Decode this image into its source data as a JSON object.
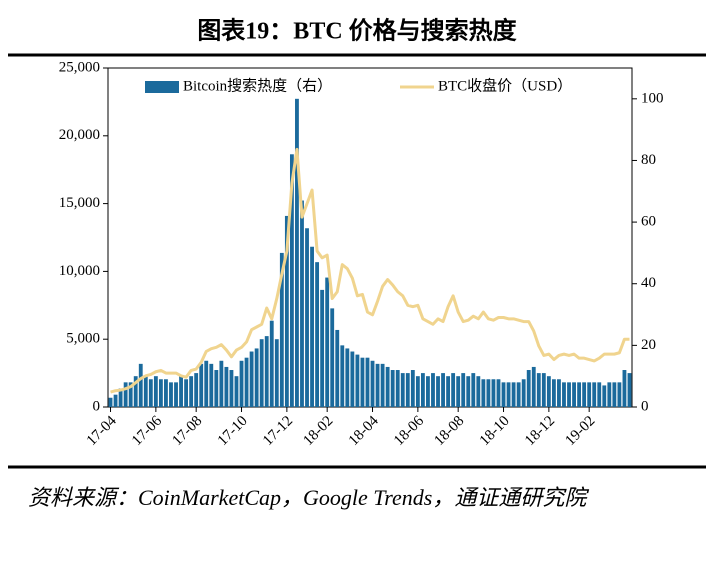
{
  "chart_data": {
    "type": "bar_line",
    "title": "图表19：BTC 价格与搜索热度",
    "source": "资料来源：CoinMarketCap，Google Trends，通证通研究院",
    "categories": [
      "17-04",
      null,
      null,
      null,
      null,
      null,
      null,
      null,
      null,
      "17-06",
      null,
      null,
      null,
      null,
      null,
      null,
      null,
      "17-08",
      null,
      null,
      null,
      null,
      null,
      null,
      null,
      null,
      "17-10",
      null,
      null,
      null,
      null,
      null,
      null,
      null,
      null,
      "17-12",
      null,
      null,
      null,
      null,
      null,
      null,
      null,
      "18-02",
      null,
      null,
      null,
      null,
      null,
      null,
      null,
      null,
      "18-04",
      null,
      null,
      null,
      null,
      null,
      null,
      null,
      null,
      "18-06",
      null,
      null,
      null,
      null,
      null,
      null,
      null,
      "18-08",
      null,
      null,
      null,
      null,
      null,
      null,
      null,
      null,
      "18-10",
      null,
      null,
      null,
      null,
      null,
      null,
      null,
      null,
      "18-12",
      null,
      null,
      null,
      null,
      null,
      null,
      null,
      "19-02",
      null,
      null,
      null,
      null,
      null,
      null,
      null,
      null
    ],
    "series": [
      {
        "name": "Bitcoin搜索热度（右）",
        "type": "bar",
        "axis": "y2",
        "color": "#1b6a9c",
        "values": [
          3,
          4,
          6,
          8,
          8,
          10,
          14,
          10,
          9,
          10,
          9,
          9,
          8,
          8,
          10,
          9,
          10,
          11,
          14,
          15,
          14,
          12,
          15,
          13,
          12,
          10,
          15,
          16,
          18,
          19,
          22,
          23,
          28,
          22,
          50,
          62,
          82,
          100,
          67,
          58,
          52,
          47,
          38,
          42,
          32,
          25,
          20,
          19,
          18,
          17,
          16,
          16,
          15,
          14,
          14,
          13,
          12,
          12,
          11,
          11,
          12,
          10,
          11,
          10,
          11,
          10,
          11,
          10,
          11,
          10,
          11,
          10,
          11,
          10,
          9,
          9,
          9,
          9,
          8,
          8,
          8,
          8,
          9,
          12,
          13,
          11,
          11,
          10,
          9,
          9,
          8,
          8,
          8,
          8,
          8,
          8,
          8,
          8,
          7,
          8,
          8,
          8,
          12,
          11
        ]
      },
      {
        "name": "BTC收盘价（USD）",
        "type": "line",
        "color": "#f0d48e",
        "values": [
          1100,
          1200,
          1250,
          1350,
          1500,
          1800,
          2100,
          2300,
          2400,
          2600,
          2700,
          2500,
          2500,
          2500,
          2300,
          2200,
          2700,
          2800,
          3300,
          4100,
          4300,
          4400,
          4600,
          4200,
          3700,
          4200,
          4400,
          4800,
          5700,
          5900,
          6100,
          7300,
          6500,
          8000,
          9800,
          11500,
          16500,
          19000,
          14000,
          15000,
          16000,
          11500,
          11000,
          11200,
          8000,
          8500,
          10500,
          10200,
          9500,
          8200,
          8300,
          7000,
          6800,
          7800,
          8900,
          9400,
          9000,
          8500,
          8200,
          7500,
          7400,
          7500,
          6500,
          6300,
          6100,
          6500,
          6300,
          7400,
          8200,
          7000,
          6300,
          6400,
          6700,
          6500,
          7000,
          6500,
          6400,
          6600,
          6600,
          6500,
          6500,
          6400,
          6300,
          6300,
          5600,
          4500,
          3800,
          3900,
          3500,
          3800,
          3900,
          3800,
          3900,
          3600,
          3600,
          3500,
          3400,
          3600,
          3900,
          3900,
          3900,
          4000,
          5000,
          5000
        ]
      }
    ],
    "ylim": [
      0,
      25000
    ],
    "yticks": [
      0,
      {
        "value": 5000,
        "label": "5,000"
      },
      {
        "value": 10000,
        "label": "10,000"
      },
      {
        "value": 15000,
        "label": "15,000"
      },
      {
        "value": 20000,
        "label": "20,000"
      },
      {
        "value": 25000,
        "label": "25,000"
      }
    ],
    "y2lim": [
      0,
      110
    ],
    "y2ticks": [
      0,
      20,
      40,
      60,
      80,
      100
    ]
  }
}
